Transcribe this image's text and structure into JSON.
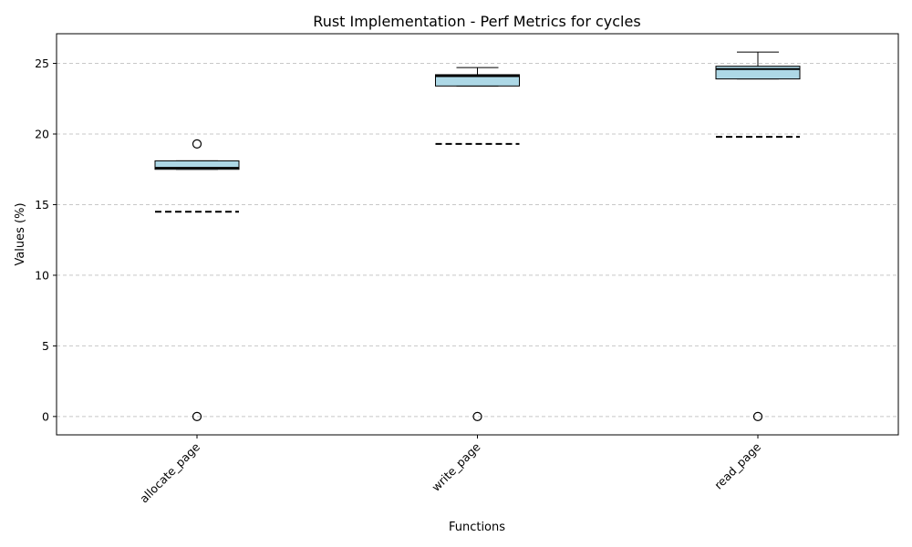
{
  "chart_data": {
    "type": "box",
    "title": "Rust Implementation - Perf Metrics for cycles",
    "xlabel": "Functions",
    "ylabel": "Values (%)",
    "ylim": [
      -1.3,
      27.1
    ],
    "yticks": [
      0,
      5,
      10,
      15,
      20,
      25
    ],
    "grid": "y-dashed",
    "categories": [
      "allocate_page",
      "write_page",
      "read_page"
    ],
    "boxes": [
      {
        "category": "allocate_page",
        "whisker_low": 17.5,
        "q1": 17.5,
        "median": 17.6,
        "q3": 18.1,
        "whisker_high": 18.1,
        "mean": 14.5,
        "outliers": [
          19.3,
          0
        ]
      },
      {
        "category": "write_page",
        "whisker_low": 23.4,
        "q1": 23.4,
        "median": 24.1,
        "q3": 24.2,
        "whisker_high": 24.7,
        "mean": 19.3,
        "outliers": [
          0
        ]
      },
      {
        "category": "read_page",
        "whisker_low": 23.9,
        "q1": 23.9,
        "median": 24.6,
        "q3": 24.8,
        "whisker_high": 25.8,
        "mean": 19.8,
        "outliers": [
          0
        ]
      }
    ],
    "colors": {
      "box_fill": "#add8e6",
      "grid": "#c8c8c8",
      "frame": "#000000"
    }
  }
}
